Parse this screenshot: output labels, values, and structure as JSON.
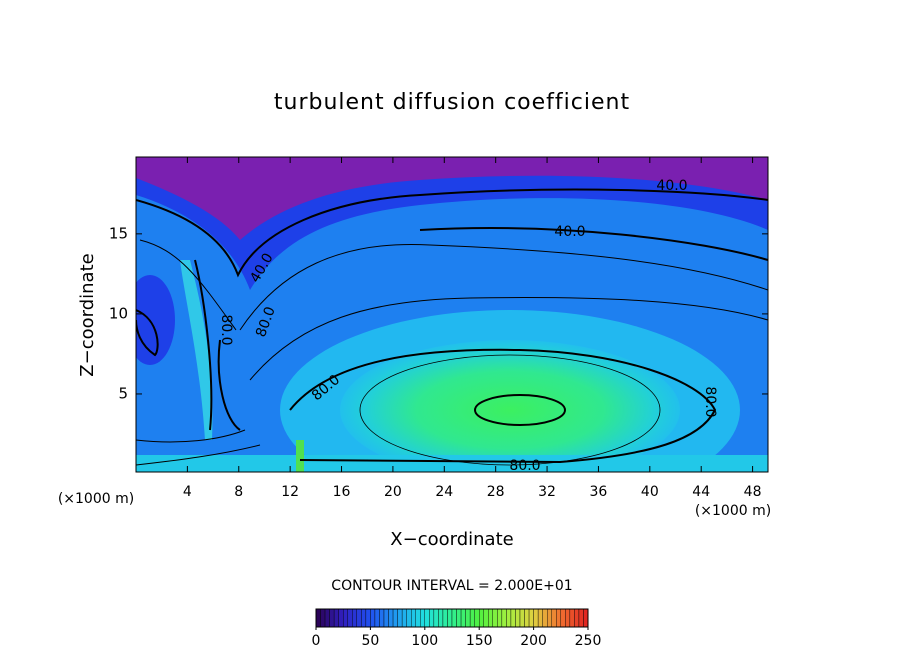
{
  "chart_data": {
    "type": "contour",
    "title": "turbulent diffusion coefficient",
    "x_label": "X−coordinate",
    "y_label": "Z−coordinate",
    "x_unit": "(×1000 m)",
    "y_unit": "(×1000 m)",
    "xlim": [
      0,
      49.2
    ],
    "xticks": [
      4,
      8,
      12,
      16,
      20,
      24,
      28,
      32,
      36,
      40,
      44,
      48
    ],
    "ylim": [
      0.125,
      19.8
    ],
    "yticks": [
      5,
      10,
      15
    ],
    "contour_interval": "CONTOUR INTERVAL = 2.000E+01",
    "contour_labels": [
      {
        "value": 40,
        "label": "40.0"
      },
      {
        "value": 40,
        "label": "40.0"
      },
      {
        "value": 40,
        "label": "40.0"
      },
      {
        "value": 80,
        "label": "80.0"
      },
      {
        "value": 80,
        "label": "80.0"
      },
      {
        "value": 80,
        "label": "80.0"
      },
      {
        "value": 80,
        "label": "80.0"
      },
      {
        "value": 80,
        "label": "80.0"
      }
    ],
    "colorbar": {
      "lim": [
        0,
        250
      ],
      "ticks": [
        0,
        50,
        100,
        150,
        200,
        250
      ],
      "colors": [
        "#2a0050",
        "#3020c0",
        "#2050f0",
        "#20a0f0",
        "#20e0e0",
        "#30f090",
        "#50f040",
        "#a0f040",
        "#e0d040",
        "#f07030",
        "#e02020"
      ]
    }
  }
}
